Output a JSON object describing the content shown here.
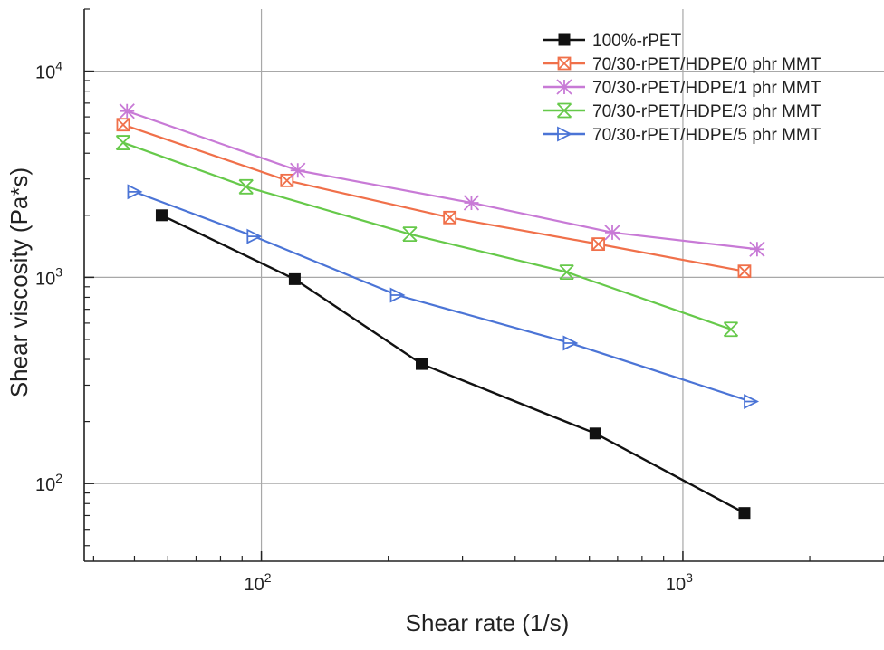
{
  "chart_data": {
    "type": "line",
    "title": "",
    "xlabel": "Shear rate (1/s)",
    "ylabel": "Shear viscosity (Pa*s)",
    "x_scale": "log",
    "y_scale": "log",
    "xlim": [
      38,
      3000
    ],
    "ylim": [
      42,
      20000
    ],
    "grid": true,
    "legend_position": "top-right",
    "x_ticks": [
      {
        "value": 100,
        "base": "10",
        "exp": "2"
      },
      {
        "value": 1000,
        "base": "10",
        "exp": "3"
      }
    ],
    "y_ticks": [
      {
        "value": 100,
        "base": "10",
        "exp": "2"
      },
      {
        "value": 1000,
        "base": "10",
        "exp": "3"
      },
      {
        "value": 10000,
        "base": "10",
        "exp": "4"
      }
    ],
    "series": [
      {
        "name": "100%-rPET",
        "color": "#111111",
        "marker": "square",
        "x": [
          58,
          120,
          240,
          620,
          1400
        ],
        "y": [
          2000,
          980,
          380,
          175,
          72
        ]
      },
      {
        "name": "70/30-rPET/HDPE/0 phr MMT",
        "color": "#f0704a",
        "marker": "square-x",
        "x": [
          47,
          115,
          280,
          630,
          1400
        ],
        "y": [
          5500,
          2950,
          1950,
          1450,
          1070
        ]
      },
      {
        "name": "70/30-rPET/HDPE/1 phr MMT",
        "color": "#c87ad6",
        "marker": "star",
        "x": [
          48,
          122,
          315,
          680,
          1500
        ],
        "y": [
          6400,
          3300,
          2300,
          1650,
          1370
        ]
      },
      {
        "name": "70/30-rPET/HDPE/3 phr MMT",
        "color": "#66c94a",
        "marker": "cross-x",
        "x": [
          47,
          92,
          225,
          530,
          1300
        ],
        "y": [
          4500,
          2750,
          1620,
          1060,
          560
        ]
      },
      {
        "name": "70/30-rPET/HDPE/5 phr MMT",
        "color": "#4b74d6",
        "marker": "tri-right",
        "x": [
          50,
          96,
          210,
          540,
          1450
        ],
        "y": [
          2600,
          1580,
          820,
          480,
          250
        ]
      }
    ]
  }
}
